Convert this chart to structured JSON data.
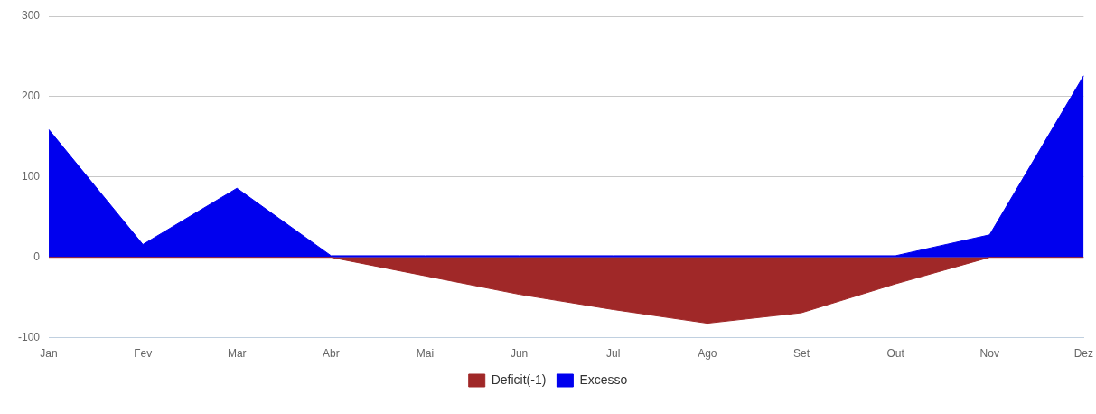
{
  "chart_data": {
    "type": "area",
    "categories": [
      "Jan",
      "Fev",
      "Mar",
      "Abr",
      "Mai",
      "Jun",
      "Jul",
      "Ago",
      "Set",
      "Out",
      "Nov",
      "Dez"
    ],
    "series": [
      {
        "name": "Deficit(-1)",
        "color": "#a02828",
        "values": [
          0,
          0,
          0,
          0,
          -23,
          -46,
          -65,
          -82,
          -69,
          -33,
          0,
          0
        ]
      },
      {
        "name": "Excesso",
        "color": "#0000ee",
        "values": [
          159,
          16,
          86,
          2,
          2,
          2,
          2,
          2,
          2,
          2,
          28,
          226
        ]
      }
    ],
    "ylim": [
      -100,
      300
    ],
    "yticks": [
      -100,
      0,
      100,
      200,
      300
    ],
    "grid": "y",
    "legend": "bottom",
    "marker": "none"
  }
}
